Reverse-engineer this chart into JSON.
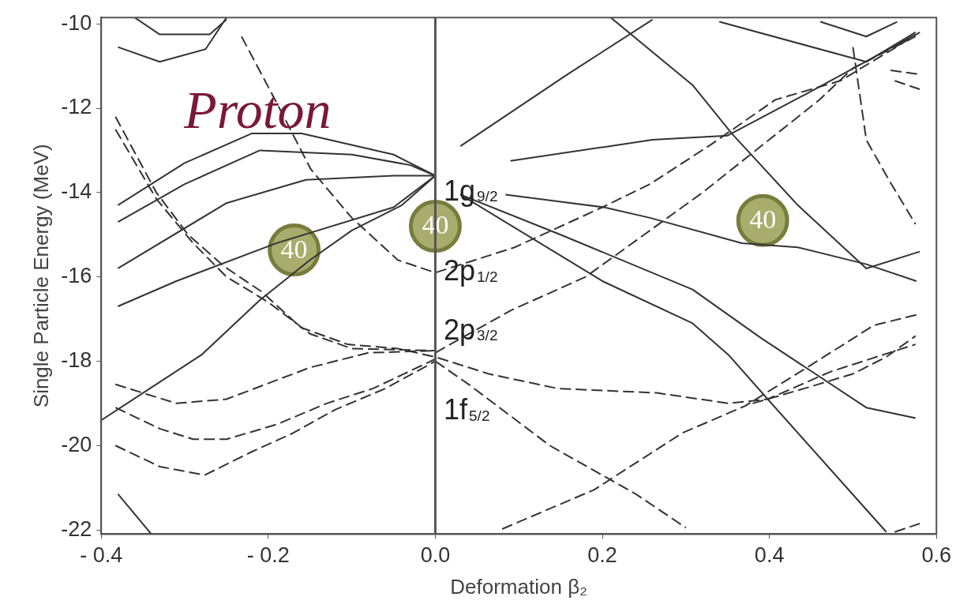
{
  "chart_data": {
    "type": "line",
    "xlabel": "Deformation β₂",
    "ylabel": "Single Particle Energy (MeV)",
    "xlim": [
      -0.4,
      0.6
    ],
    "ylim": [
      -22.1,
      -9.85
    ],
    "xticks": [
      {
        "value": -0.4,
        "label": "- 0.4"
      },
      {
        "value": -0.2,
        "label": "- 0.2"
      },
      {
        "value": 0,
        "label": "0.0"
      },
      0.2,
      0.4,
      0.6
    ],
    "yticks": [
      -22,
      -20,
      -18,
      -16,
      -14,
      -12,
      -10
    ],
    "grid": false,
    "legend": false,
    "marker": "none",
    "ref_lines": [
      {
        "axis": "x",
        "value": 0,
        "color": "#555555"
      }
    ],
    "annotations": [
      "Proton",
      "1g$_{9/2}$",
      "2p$_{1/2}$",
      "2p$_{3/2}$",
      "1f$_{5/2}$",
      "40",
      "40",
      "40"
    ],
    "series": [
      {
        "color": "#333333",
        "line_style": "solid",
        "x": [
          -0.38,
          -0.3,
          -0.22,
          -0.16,
          -0.05,
          0
        ],
        "values": [
          -14.3,
          -13.3,
          -12.6,
          -12.6,
          -13.1,
          -13.6
        ]
      },
      {
        "color": "#333333",
        "line_style": "solid",
        "x": [
          -0.38,
          -0.3,
          -0.21,
          -0.1,
          -0.03,
          0
        ],
        "values": [
          -14.7,
          -13.8,
          -13.0,
          -13.1,
          -13.35,
          -13.6
        ]
      },
      {
        "color": "#333333",
        "line_style": "solid",
        "x": [
          -0.38,
          -0.25,
          -0.155,
          -0.05,
          0
        ],
        "values": [
          -15.8,
          -14.25,
          -13.7,
          -13.6,
          -13.6
        ]
      },
      {
        "color": "#333333",
        "line_style": "solid",
        "x": [
          -0.38,
          -0.31,
          -0.19,
          -0.05,
          0
        ],
        "values": [
          -16.7,
          -16.1,
          -15.2,
          -14.35,
          -13.6
        ]
      },
      {
        "color": "#333333",
        "line_style": "solid",
        "x": [
          -0.4,
          -0.28,
          -0.21,
          -0.15,
          -0.1,
          -0.04,
          0
        ],
        "values": [
          -19.4,
          -17.85,
          -16.55,
          -15.6,
          -14.9,
          -14.3,
          -13.6
        ]
      },
      {
        "color": "#333333",
        "line_style": "solid",
        "x": [
          -0.38,
          -0.33,
          -0.275,
          -0.25
        ],
        "values": [
          -10.55,
          -10.9,
          -10.6,
          -9.85
        ]
      },
      {
        "color": "#333333",
        "line_style": "solid",
        "x": [
          -0.36,
          -0.33,
          -0.27,
          -0.25
        ],
        "values": [
          -9.85,
          -10.25,
          -10.25,
          -9.9
        ]
      },
      {
        "color": "#333333",
        "line_style": "solid",
        "x": [
          -0.38,
          -0.34
        ],
        "values": [
          -21.15,
          -22.1
        ]
      },
      {
        "color": "#333333",
        "line_style": "solid",
        "x": [
          0.03,
          0.158,
          0.26
        ],
        "values": [
          -12.9,
          -11.2,
          -9.9
        ]
      },
      {
        "color": "#333333",
        "line_style": "solid",
        "x": [
          0.21,
          0.308,
          0.355,
          0.434,
          0.516,
          0.58
        ],
        "values": [
          -9.85,
          -11.45,
          -12.6,
          -14.3,
          -15.8,
          -15.4
        ]
      },
      {
        "color": "#333333",
        "line_style": "solid",
        "x": [
          0.09,
          0.26,
          0.35,
          0.45,
          0.575
        ],
        "values": [
          -13.25,
          -12.75,
          -12.65,
          -11.6,
          -10.25
        ]
      },
      {
        "color": "#333333",
        "line_style": "solid",
        "x": [
          0.084,
          0.202,
          0.257,
          0.367,
          0.434,
          0.516,
          0.576
        ],
        "values": [
          -14.05,
          -14.35,
          -14.6,
          -15.2,
          -15.3,
          -15.7,
          -16.1
        ]
      },
      {
        "color": "#333333",
        "line_style": "solid",
        "x": [
          0.03,
          0.2,
          0.308,
          0.351,
          0.398,
          0.54
        ],
        "values": [
          -14.05,
          -16.1,
          -17.1,
          -17.85,
          -18.9,
          -22.05
        ]
      },
      {
        "color": "#333333",
        "line_style": "solid",
        "x": [
          0.03,
          0.15,
          0.308,
          0.39,
          0.516,
          0.575
        ],
        "values": [
          -14.05,
          -15.0,
          -16.3,
          -17.45,
          -19.1,
          -19.35
        ]
      },
      {
        "color": "#333333",
        "line_style": "solid",
        "x": [
          0.34,
          0.516,
          0.575
        ],
        "values": [
          -9.95,
          -10.9,
          -10.2
        ]
      },
      {
        "color": "#333333",
        "line_style": "solid",
        "x": [
          0.461,
          0.516,
          0.553
        ],
        "values": [
          -9.95,
          -10.3,
          -9.95
        ]
      },
      {
        "color": "#333333",
        "line_style": "dashed",
        "x": [
          -0.383,
          -0.334,
          -0.296,
          -0.253,
          -0.208,
          -0.161,
          -0.105,
          -0.045,
          0,
          0.064,
          0.147,
          0.265,
          0.351,
          0.398,
          0.473,
          0.575
        ],
        "values": [
          -12.2,
          -14.0,
          -15.0,
          -15.75,
          -16.35,
          -17.2,
          -17.6,
          -17.7,
          -17.9,
          -18.3,
          -18.65,
          -18.75,
          -19.0,
          -18.9,
          -18.25,
          -17.6
        ]
      },
      {
        "color": "#333333",
        "line_style": "dashed",
        "x": [
          -0.383,
          -0.334,
          -0.29,
          -0.25,
          -0.2,
          -0.15,
          -0.1,
          0
        ],
        "values": [
          -12.5,
          -14.15,
          -15.2,
          -16.0,
          -16.6,
          -17.35,
          -17.7,
          -17.75
        ]
      },
      {
        "color": "#333333",
        "line_style": "dashed",
        "x": [
          -0.383,
          -0.31,
          -0.25,
          -0.15,
          -0.08,
          0
        ],
        "values": [
          -18.55,
          -19.0,
          -18.9,
          -18.15,
          -17.8,
          -17.75
        ]
      },
      {
        "color": "#333333",
        "line_style": "dashed",
        "x": [
          -0.383,
          -0.33,
          -0.29,
          -0.25,
          -0.19,
          -0.13,
          -0.075,
          0
        ],
        "values": [
          -19.1,
          -19.6,
          -19.85,
          -19.85,
          -19.5,
          -19.0,
          -18.65,
          -17.95
        ]
      },
      {
        "color": "#333333",
        "line_style": "dashed",
        "x": [
          -0.383,
          -0.33,
          -0.276,
          -0.22,
          -0.17,
          -0.12,
          -0.06,
          0
        ],
        "values": [
          -20.0,
          -20.5,
          -20.7,
          -20.15,
          -19.7,
          -19.15,
          -18.65,
          -18.0
        ]
      },
      {
        "color": "#333333",
        "line_style": "dashed",
        "x": [
          -0.232,
          -0.19,
          -0.149,
          -0.1,
          -0.045,
          0,
          0.095,
          0.2,
          0.257,
          0.331,
          0.407,
          0.485,
          0.556,
          0.58
        ],
        "values": [
          -10.3,
          -11.87,
          -13.45,
          -14.6,
          -15.6,
          -15.9,
          -15.3,
          -14.35,
          -13.8,
          -12.85,
          -11.8,
          -11.35,
          -10.5,
          -10.2
        ]
      },
      {
        "color": "#333333",
        "line_style": "dashed",
        "x": [
          0,
          0.09,
          0.18,
          0.25,
          0.32,
          0.39,
          0.46,
          0.5,
          0.575
        ],
        "values": [
          -17.8,
          -16.8,
          -16.0,
          -15.0,
          -14.0,
          -12.9,
          -11.8,
          -11.05,
          -10.3
        ]
      },
      {
        "color": "#333333",
        "line_style": "dashed",
        "x": [
          0,
          0.04,
          0.137,
          0.24,
          0.3
        ],
        "values": [
          -18.0,
          -18.55,
          -20.0,
          -21.15,
          -21.95
        ]
      },
      {
        "color": "#333333",
        "line_style": "dashed",
        "x": [
          0.08,
          0.19,
          0.296,
          0.371,
          0.445,
          0.525,
          0.576
        ],
        "values": [
          -21.98,
          -21.05,
          -19.7,
          -19.06,
          -18.15,
          -17.15,
          -16.9
        ]
      },
      {
        "color": "#333333",
        "line_style": "dashed",
        "x": [
          0.38,
          0.45,
          0.5,
          0.54,
          0.575
        ],
        "values": [
          -19.0,
          -18.6,
          -18.3,
          -17.9,
          -17.4
        ]
      },
      {
        "color": "#333333",
        "line_style": "dashed",
        "x": [
          0.55,
          0.58
        ],
        "values": [
          -22.05,
          -21.85
        ]
      },
      {
        "color": "#333333",
        "line_style": "dashed",
        "x": [
          0.5,
          0.516,
          0.543,
          0.575
        ],
        "values": [
          -10.55,
          -12.75,
          -13.7,
          -14.75
        ]
      },
      {
        "color": "#333333",
        "line_style": "dashed",
        "x": [
          0.545,
          0.58
        ],
        "values": [
          -11.1,
          -11.2
        ]
      },
      {
        "color": "#333333",
        "line_style": "dashed",
        "x": [
          0.55,
          0.58
        ],
        "values": [
          -11.35,
          -11.55
        ]
      }
    ]
  }
}
